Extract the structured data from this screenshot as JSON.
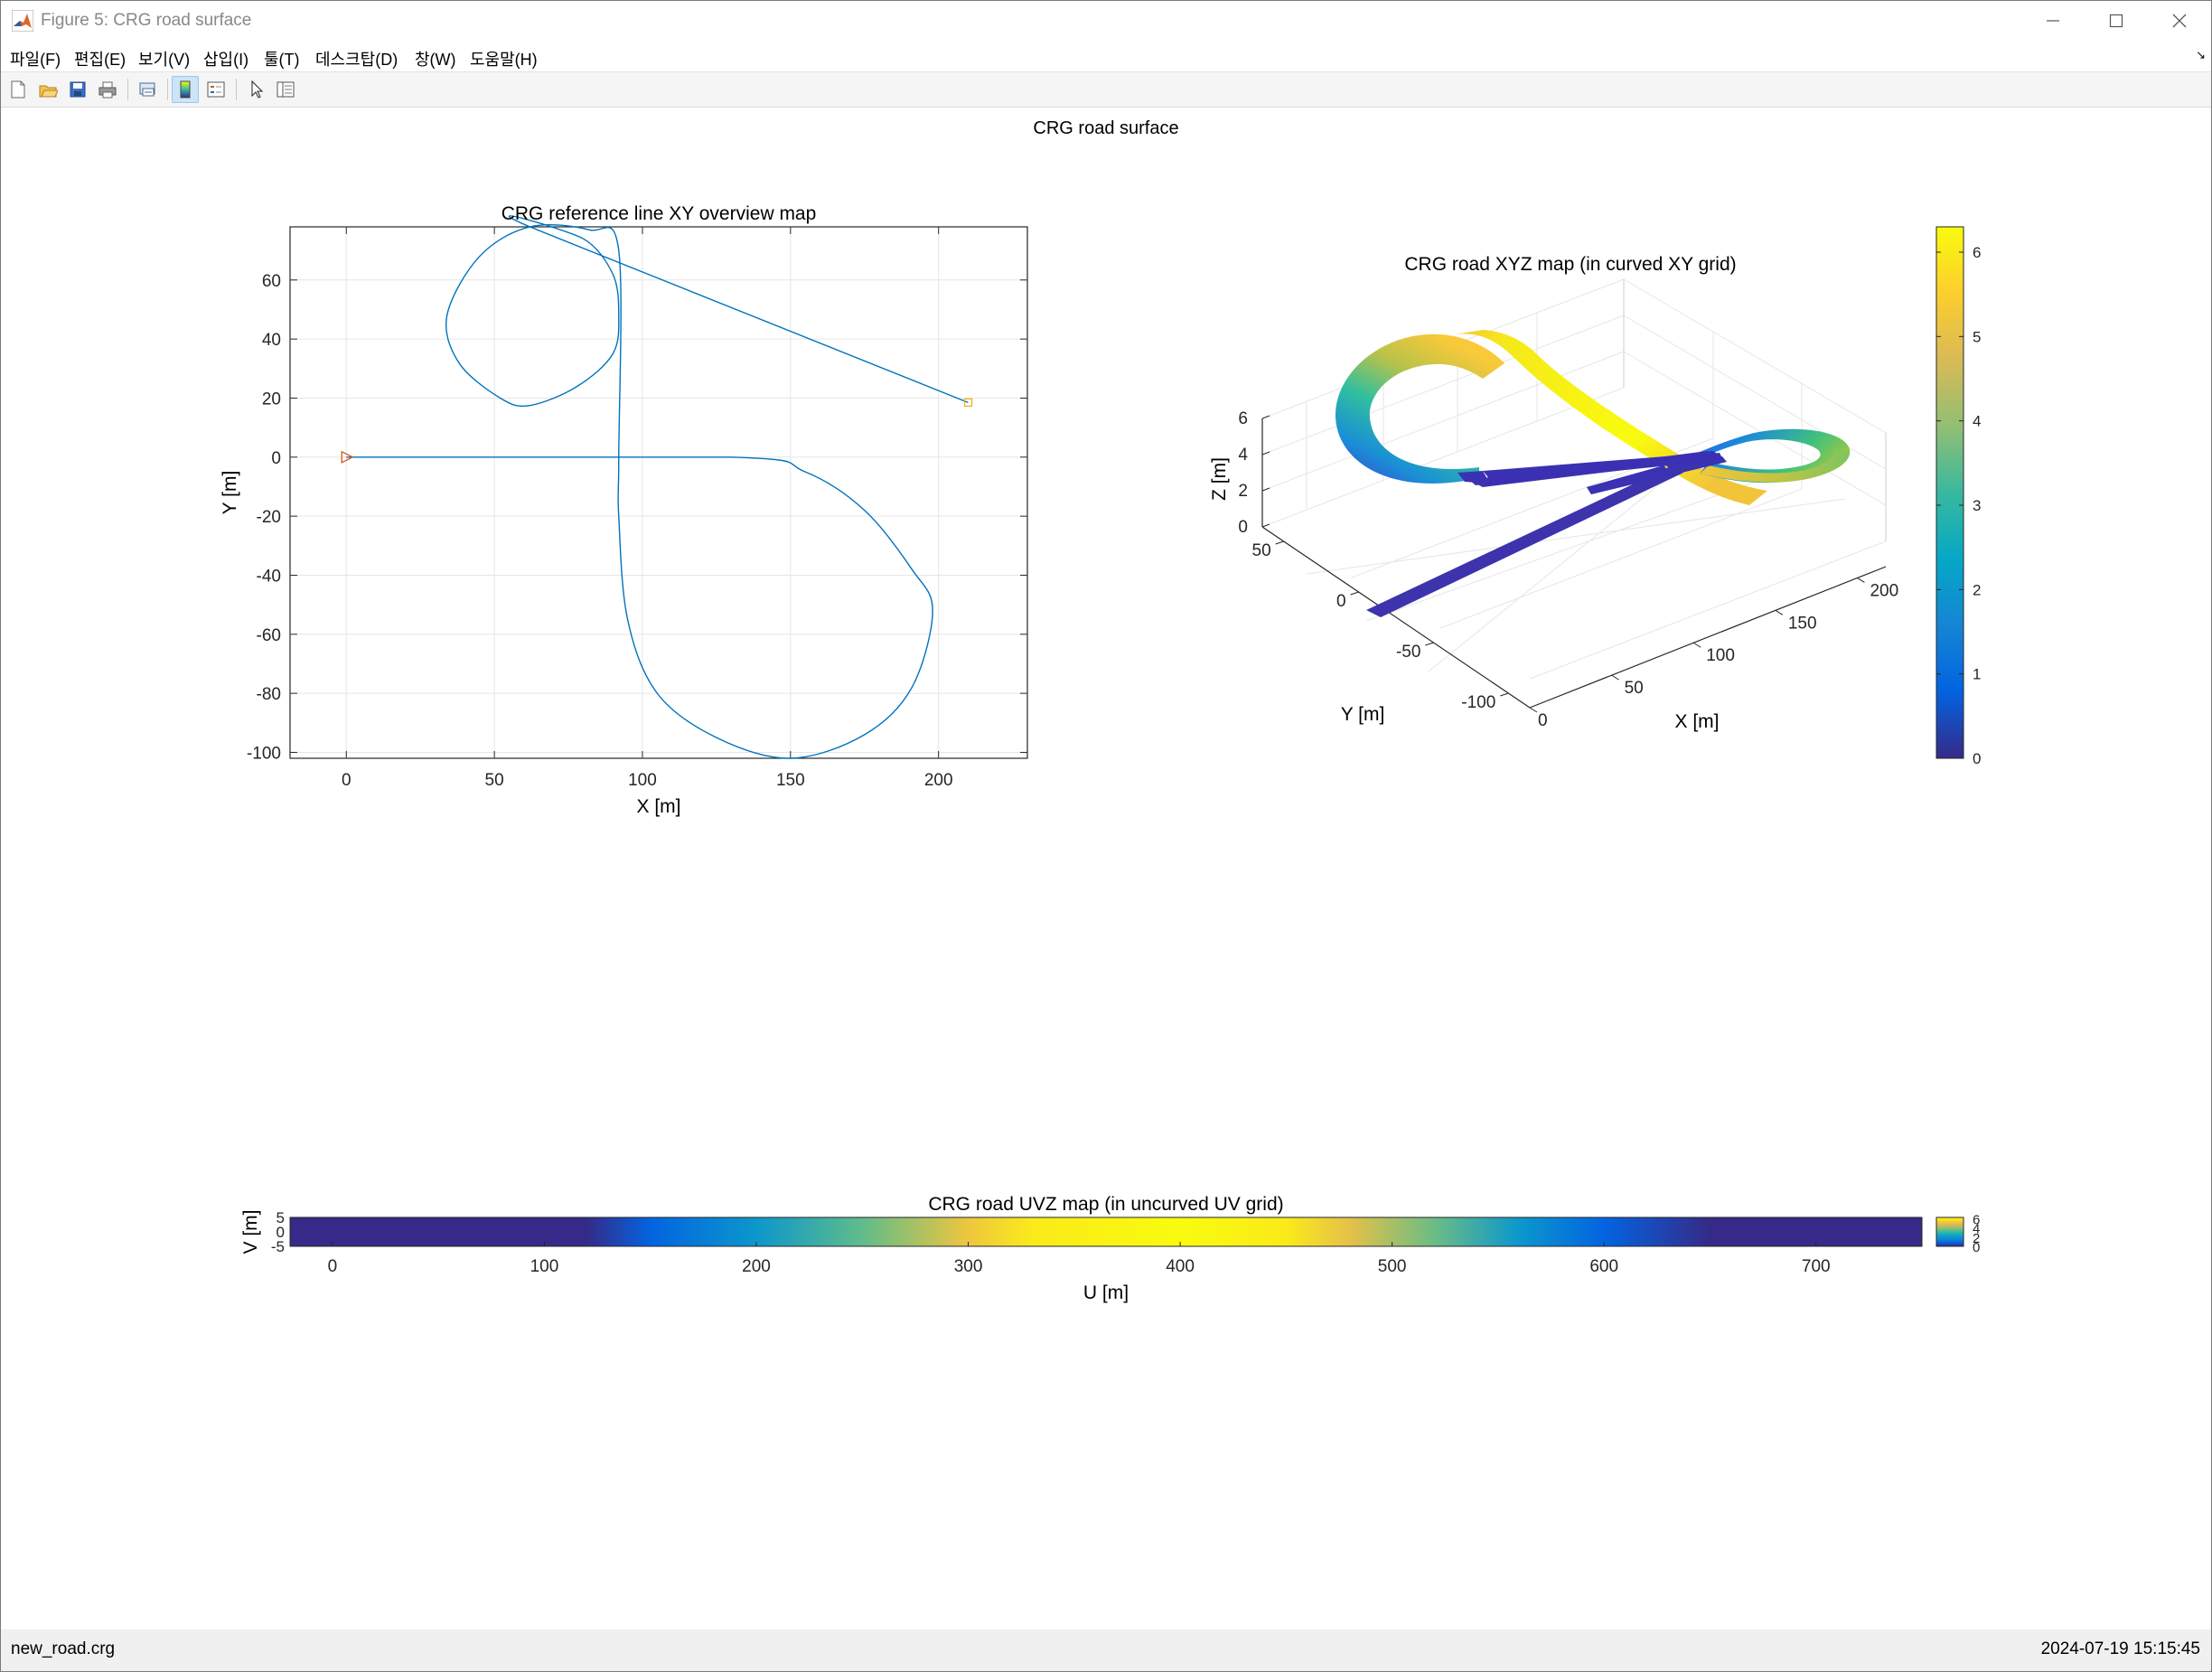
{
  "window": {
    "title": "Figure 5: CRG road surface",
    "controls": [
      "minimize",
      "maximize",
      "close"
    ]
  },
  "menu": {
    "items": [
      "파일(F)",
      "편집(E)",
      "보기(V)",
      "삽입(I)",
      "툴(T)",
      "데스크탑(D)",
      "창(W)",
      "도움말(H)"
    ]
  },
  "toolbar": {
    "buttons": [
      "new-figure-icon",
      "open-file-icon",
      "save-icon",
      "print-icon",
      "link-plot-icon",
      "toggle-colorbar-icon",
      "insert-legend-icon",
      "edit-plot-pointer-icon",
      "property-inspector-icon"
    ]
  },
  "figure": {
    "super_title": "CRG road surface"
  },
  "status": {
    "file": "new_road.crg",
    "datetime": "2024-07-19 15:15:45"
  },
  "colors": {
    "line": "#0072bd",
    "marker": "#d95319",
    "parula": [
      "#352a87",
      "#0363e1",
      "#1485d4",
      "#06a7c6",
      "#38b99e",
      "#92bf73",
      "#d9ba56",
      "#fcce2e",
      "#f9fb0e"
    ]
  },
  "chart_data": [
    {
      "type": "line",
      "title": "CRG reference line XY overview map",
      "xlabel": "X [m]",
      "ylabel": "Y [m]",
      "xlim": [
        -19,
        230
      ],
      "ylim": [
        -102,
        78
      ],
      "xticks": [
        "0",
        "50",
        "100",
        "150",
        "200"
      ],
      "yticks": [
        "-100",
        "-80",
        "-60",
        "-40",
        "-20",
        "0",
        "20",
        "40",
        "60"
      ],
      "grid": true,
      "series": [
        {
          "x": [
            0,
            130,
            155,
            175,
            191,
            198,
            191,
            175,
            150,
            125,
            105,
            95,
            92,
            92,
            92,
            82,
            62,
            45,
            34,
            38,
            52,
            62,
            78,
            90,
            92,
            90,
            80,
            62,
            210
          ],
          "y": [
            0,
            0,
            -5,
            -18,
            -38,
            -52,
            -78,
            -94,
            -102,
            -95,
            -80,
            -55,
            -20,
            0,
            70,
            77,
            78,
            68,
            48,
            32,
            20,
            17.5,
            24,
            35,
            48,
            62,
            74,
            78,
            18.5
          ]
        }
      ],
      "markers": [
        {
          "shape": "triangle-right",
          "x": 0,
          "y": 0
        },
        {
          "shape": "square",
          "x": 210,
          "y": 18.5
        }
      ]
    },
    {
      "type": "area",
      "title": "CRG road XYZ map (in curved XY grid)",
      "xlabel": "X [m]",
      "ylabel": "Y [m]",
      "zlabel": "Z [m]",
      "xticks": [
        "0",
        "50",
        "100",
        "150",
        "200"
      ],
      "yticks": [
        "-100",
        "-50",
        "0",
        "50"
      ],
      "zticks": [
        "0",
        "2",
        "4",
        "6"
      ],
      "colorbar_ticks": [
        "0",
        "1",
        "2",
        "3",
        "4",
        "5",
        "6"
      ],
      "clim": [
        0,
        6.3
      ]
    },
    {
      "type": "heatmap",
      "title": "CRG road UVZ map (in uncurved UV grid)",
      "xlabel": "U [m]",
      "ylabel": "V [m]",
      "xlim": [
        -20,
        750
      ],
      "ylim": [
        -5,
        5
      ],
      "xticks": [
        "0",
        "100",
        "200",
        "300",
        "400",
        "500",
        "600",
        "700"
      ],
      "yticks": [
        "-5",
        "0",
        "5"
      ],
      "colorbar_ticks": [
        "0",
        "2",
        "4",
        "6"
      ],
      "u": [
        0,
        120,
        150,
        200,
        250,
        300,
        330,
        400,
        450,
        480,
        520,
        560,
        600,
        650,
        750
      ],
      "z": [
        0,
        0,
        0.8,
        2,
        3.5,
        5.2,
        6.0,
        6.3,
        6.0,
        5.0,
        3.6,
        2.0,
        0.8,
        0,
        0
      ]
    }
  ]
}
